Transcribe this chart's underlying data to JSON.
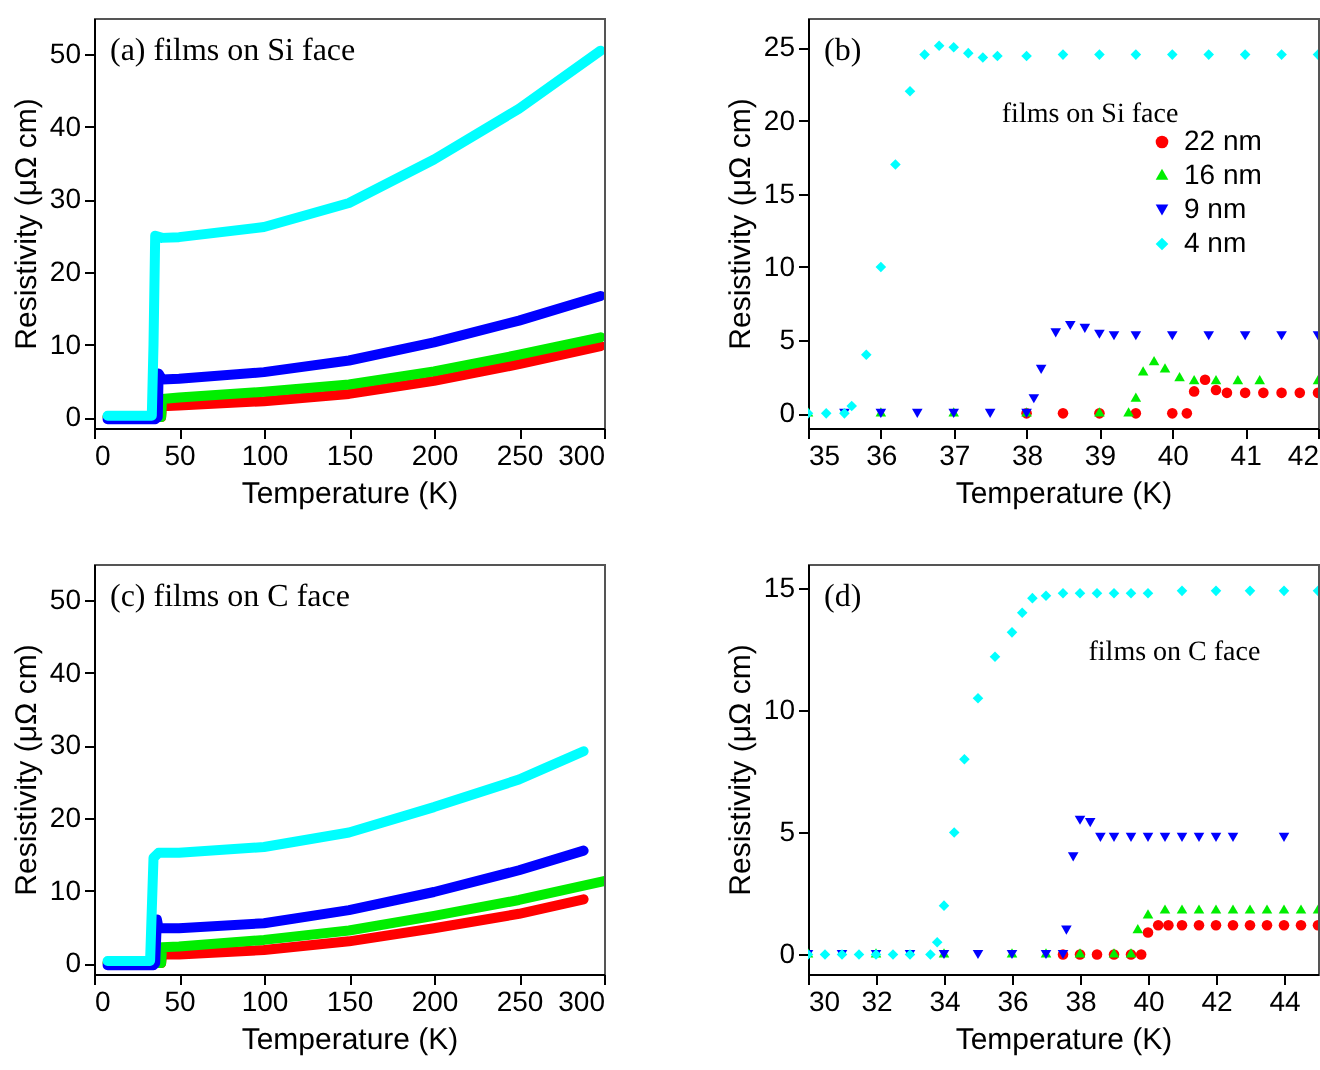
{
  "chart_data": [
    {
      "type": "line",
      "annotations": [
        "(a) films on Si face"
      ],
      "xlabel": "Temperature (K)",
      "ylabel": "Resistivity (μΩ cm)",
      "xlim": [
        0,
        300
      ],
      "xticks": [
        0,
        50,
        100,
        150,
        200,
        250,
        300
      ],
      "ylim": [
        -1.5,
        55
      ],
      "yticks": [
        0,
        10,
        20,
        30,
        40,
        50
      ],
      "grid": false,
      "legend": false,
      "line_style": "solid",
      "marker": "none",
      "series": [
        {
          "color": "#ff0000",
          "x": [
            8,
            20,
            38,
            39.5,
            40,
            50,
            100,
            150,
            200,
            250,
            298
          ],
          "values": [
            0,
            0,
            0,
            0,
            1.5,
            1.6,
            2.2,
            3.2,
            5,
            7.3,
            9.8
          ]
        },
        {
          "color": "#00ee00",
          "x": [
            8,
            20,
            38,
            39.5,
            40,
            50,
            100,
            150,
            200,
            250,
            298
          ],
          "values": [
            0,
            0,
            0,
            0,
            2.5,
            2.7,
            3.5,
            4.5,
            6.3,
            8.6,
            11
          ]
        },
        {
          "color": "#0000ff",
          "x": [
            8,
            20,
            36,
            37.5,
            38,
            40,
            50,
            100,
            150,
            200,
            250,
            298
          ],
          "values": [
            -0.3,
            -0.3,
            -0.3,
            0,
            6,
            5.2,
            5.3,
            6.2,
            7.8,
            10.3,
            13.3,
            16.7
          ]
        },
        {
          "color": "#00ffff",
          "x": [
            8,
            20,
            34,
            35,
            36,
            40,
            50,
            100,
            150,
            200,
            250,
            298
          ],
          "values": [
            0.2,
            0.2,
            0.2,
            10,
            25,
            24.7,
            24.8,
            26.2,
            29.5,
            35.5,
            42.5,
            50.5
          ]
        }
      ]
    },
    {
      "type": "scatter",
      "annotations": [
        "(b)",
        "films on Si face"
      ],
      "xlabel": "Temperature (K)",
      "ylabel": "Resistivity (μΩ cm)",
      "xlim": [
        35,
        42
      ],
      "xticks": [
        35,
        36,
        37,
        38,
        39,
        40,
        41,
        42
      ],
      "ylim": [
        -1,
        27
      ],
      "yticks": [
        0,
        5,
        10,
        15,
        20,
        25
      ],
      "grid": false,
      "legend": "right",
      "series": [
        {
          "name": "22 nm",
          "color": "#ff0000",
          "marker": "circle",
          "x": [
            38,
            38.5,
            39,
            39.5,
            40,
            40.2,
            40.3,
            40.45,
            40.6,
            40.75,
            41,
            41.25,
            41.5,
            41.75,
            42
          ],
          "values": [
            0,
            0,
            0,
            0,
            0,
            0,
            1.5,
            2.3,
            1.6,
            1.4,
            1.4,
            1.4,
            1.4,
            1.4,
            1.4
          ]
        },
        {
          "name": "16 nm",
          "color": "#00ee00",
          "marker": "triangle",
          "x": [
            35,
            36,
            37,
            38,
            39,
            39.4,
            39.5,
            39.6,
            39.75,
            39.9,
            40.1,
            40.3,
            40.6,
            40.9,
            41.2,
            42
          ],
          "values": [
            0,
            0,
            0,
            0,
            0,
            0,
            1,
            2.8,
            3.5,
            3,
            2.4,
            2.2,
            2.2,
            2.2,
            2.2,
            2.2
          ]
        },
        {
          "name": "9 nm",
          "color": "#0000ff",
          "marker": "triangle-down",
          "x": [
            35.5,
            36,
            36.5,
            37,
            37.5,
            38,
            38.1,
            38.2,
            38.4,
            38.6,
            38.8,
            39,
            39.2,
            39.5,
            40,
            40.5,
            41,
            41.5,
            42
          ],
          "values": [
            0,
            0,
            0,
            0,
            0,
            0,
            1,
            3,
            5.5,
            6,
            5.8,
            5.4,
            5.3,
            5.3,
            5.3,
            5.3,
            5.3,
            5.3,
            5.3
          ]
        },
        {
          "name": "4 nm",
          "color": "#00ffff",
          "marker": "diamond",
          "x": [
            35,
            35.25,
            35.5,
            35.6,
            35.8,
            36,
            36.2,
            36.4,
            36.6,
            36.8,
            37,
            37.2,
            37.4,
            37.6,
            38,
            38.5,
            39,
            39.5,
            40,
            40.5,
            41,
            41.5,
            42
          ],
          "values": [
            0,
            0,
            0,
            0.5,
            4,
            10,
            17,
            22,
            24.5,
            25.1,
            25,
            24.6,
            24.3,
            24.4,
            24.4,
            24.5,
            24.5,
            24.5,
            24.5,
            24.5,
            24.5,
            24.5,
            24.5
          ]
        }
      ]
    },
    {
      "type": "line",
      "annotations": [
        "(c)  films on C face"
      ],
      "xlabel": "Temperature (K)",
      "ylabel": "Resistivity (μΩ cm)",
      "xlim": [
        0,
        300
      ],
      "xticks": [
        0,
        50,
        100,
        150,
        200,
        250,
        300
      ],
      "ylim": [
        -1.5,
        55
      ],
      "yticks": [
        0,
        10,
        20,
        30,
        40,
        50
      ],
      "grid": false,
      "legend": false,
      "line_style": "solid",
      "marker": "none",
      "series": [
        {
          "color": "#ff0000",
          "x": [
            8,
            20,
            38,
            39.5,
            40,
            50,
            100,
            150,
            200,
            250,
            288
          ],
          "values": [
            0,
            0,
            0,
            0,
            1.2,
            1.2,
            1.8,
            3,
            4.8,
            6.8,
            8.8
          ]
        },
        {
          "color": "#00ee00",
          "x": [
            8,
            20,
            38,
            39.5,
            40,
            50,
            100,
            150,
            200,
            250,
            300
          ],
          "values": [
            0,
            0,
            0,
            0,
            2.2,
            2.3,
            3.2,
            4.5,
            6.5,
            8.7,
            11.3
          ]
        },
        {
          "color": "#0000ff",
          "x": [
            8,
            20,
            35,
            36,
            37,
            38,
            50,
            100,
            150,
            200,
            250,
            288
          ],
          "values": [
            -0.3,
            -0.3,
            -0.3,
            0,
            6,
            4.8,
            4.8,
            5.5,
            7.3,
            9.8,
            12.8,
            15.5
          ]
        },
        {
          "color": "#00ffff",
          "x": [
            8,
            20,
            33,
            35,
            38,
            50,
            100,
            150,
            200,
            250,
            288
          ],
          "values": [
            0.3,
            0.3,
            0.3,
            14.5,
            15.2,
            15.2,
            16,
            18,
            21.5,
            25.3,
            29.2
          ]
        }
      ]
    },
    {
      "type": "scatter",
      "annotations": [
        "(d)",
        "films on C face"
      ],
      "xlabel": "Temperature (K)",
      "ylabel": "Resistivity (μΩ cm)",
      "xlim": [
        30,
        45
      ],
      "xticks": [
        30,
        32,
        34,
        36,
        38,
        40,
        42,
        44
      ],
      "ylim": [
        -0.8,
        16
      ],
      "yticks": [
        0,
        5,
        10,
        15
      ],
      "grid": false,
      "legend": false,
      "series": [
        {
          "color": "#ff0000",
          "marker": "circle",
          "x": [
            37.5,
            38,
            38.5,
            39,
            39.5,
            39.8,
            40,
            40.3,
            40.6,
            41,
            41.5,
            42,
            42.5,
            43,
            43.5,
            44,
            44.5,
            45
          ],
          "values": [
            0,
            0,
            0,
            0,
            0,
            0,
            0.9,
            1.2,
            1.2,
            1.2,
            1.2,
            1.2,
            1.2,
            1.2,
            1.2,
            1.2,
            1.2,
            1.2
          ]
        },
        {
          "color": "#00ee00",
          "marker": "triangle",
          "x": [
            30,
            32,
            34,
            36,
            37,
            38,
            39,
            39.5,
            39.7,
            40,
            40.5,
            41,
            41.5,
            42,
            42.5,
            43,
            43.5,
            44,
            44.5,
            45
          ],
          "values": [
            0,
            0,
            0,
            0,
            0,
            0,
            0,
            0,
            1,
            1.6,
            1.8,
            1.8,
            1.8,
            1.8,
            1.8,
            1.8,
            1.8,
            1.8,
            1.8,
            1.8
          ]
        },
        {
          "color": "#0000ff",
          "marker": "triangle-down",
          "x": [
            30,
            31,
            32,
            33,
            34,
            35,
            36,
            37,
            37.5,
            37.6,
            37.8,
            38,
            38.3,
            38.6,
            39,
            39.5,
            40,
            40.5,
            41,
            41.5,
            42,
            42.5,
            44
          ],
          "values": [
            0,
            0,
            0,
            0,
            0,
            0,
            0,
            0,
            0,
            1,
            4,
            5.5,
            5.4,
            4.8,
            4.8,
            4.8,
            4.8,
            4.8,
            4.8,
            4.8,
            4.8,
            4.8,
            4.8
          ]
        },
        {
          "color": "#00ffff",
          "marker": "diamond",
          "x": [
            30,
            30.5,
            31,
            31.5,
            32,
            32.5,
            33,
            33.6,
            33.8,
            34,
            34.3,
            34.6,
            35,
            35.5,
            36,
            36.3,
            36.6,
            37,
            37.5,
            38,
            38.5,
            39,
            39.5,
            40,
            41,
            42,
            43,
            44,
            45
          ],
          "values": [
            0,
            0,
            0,
            0,
            0,
            0,
            0,
            0,
            0.5,
            2,
            5,
            8,
            10.5,
            12.2,
            13.2,
            14,
            14.6,
            14.7,
            14.8,
            14.8,
            14.8,
            14.8,
            14.8,
            14.8,
            14.9,
            14.9,
            14.9,
            14.9,
            14.9
          ]
        }
      ]
    }
  ]
}
